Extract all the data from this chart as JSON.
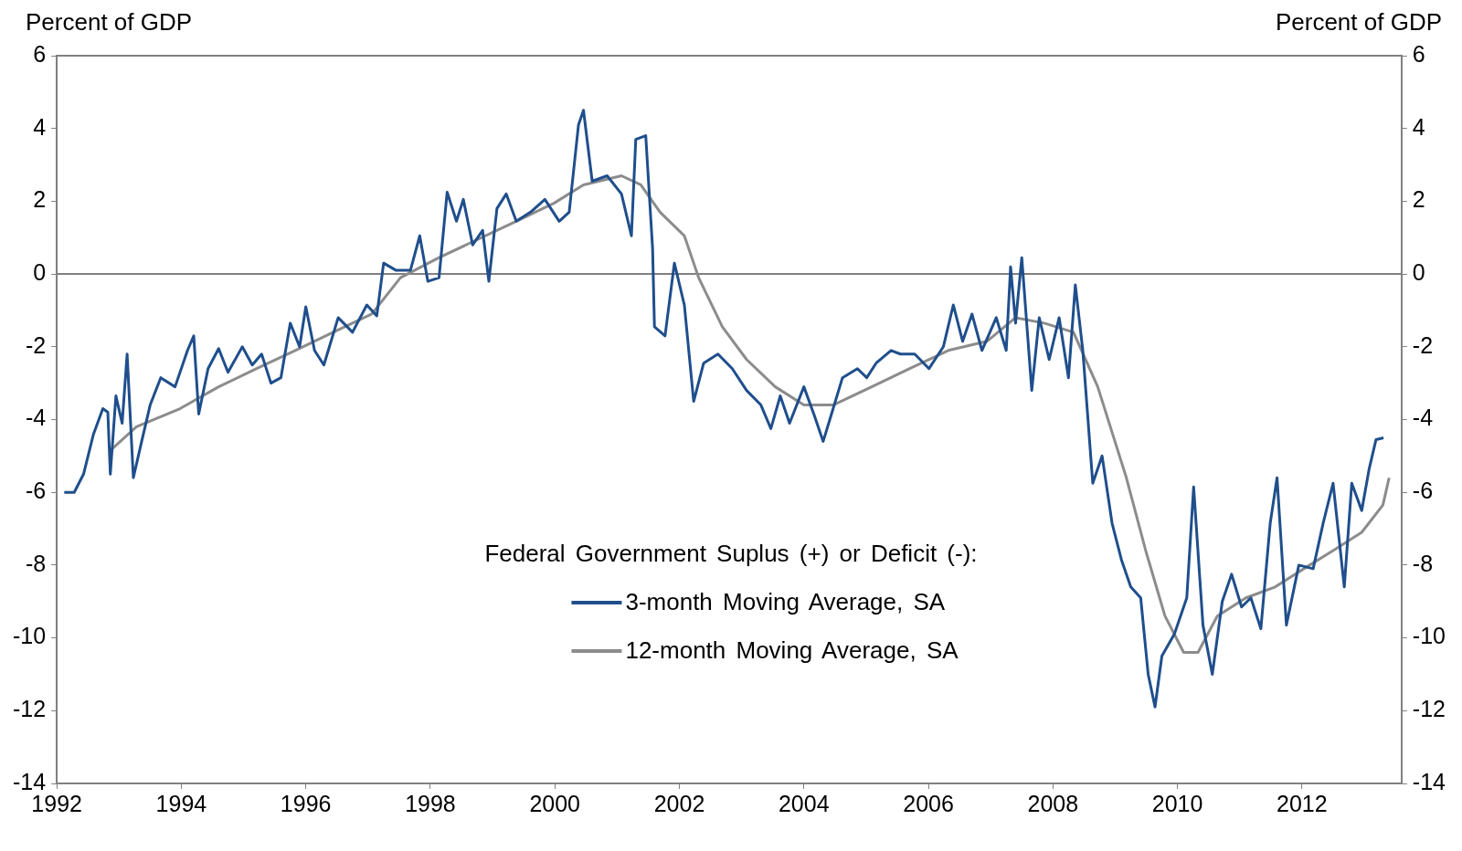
{
  "chart_data": {
    "type": "line",
    "ylabel": "Percent of GDP",
    "y2label": "Percent of GDP",
    "legend_title": "Federal Government Suplus (+) or Deficit (-):",
    "legend": "bottom",
    "grid": false,
    "marker": "none",
    "line_style": "solid",
    "xlim": [
      1992,
      2013.6
    ],
    "xticks": [
      1992,
      1994,
      1996,
      1998,
      2000,
      2002,
      2004,
      2006,
      2008,
      2010,
      2012
    ],
    "ylim": [
      -14,
      6
    ],
    "yticks": [
      -14,
      -12,
      -10,
      -8,
      -6,
      -4,
      -2,
      0,
      2,
      4,
      6
    ],
    "y2lim": [
      -14,
      6
    ],
    "y2ticks": [
      -14,
      -12,
      -10,
      -8,
      -6,
      -4,
      -2,
      0,
      2,
      4,
      6
    ],
    "ref_lines": [
      {
        "axis": "y",
        "value": 0,
        "color": "#808080"
      }
    ],
    "series": [
      {
        "name": "3-month Moving Average, SA",
        "color": "#1f4e8c",
        "x": [
          1992.12,
          1992.28,
          1992.43,
          1992.59,
          1992.74,
          1992.82,
          1992.86,
          1992.95,
          1993.05,
          1993.13,
          1993.23,
          1993.35,
          1993.5,
          1993.67,
          1993.9,
          1994.1,
          1994.2,
          1994.28,
          1994.43,
          1994.6,
          1994.75,
          1994.98,
          1995.14,
          1995.29,
          1995.44,
          1995.6,
          1995.75,
          1995.9,
          1996.0,
          1996.14,
          1996.29,
          1996.52,
          1996.75,
          1996.98,
          1997.14,
          1997.25,
          1997.45,
          1997.68,
          1997.83,
          1997.96,
          1998.14,
          1998.27,
          1998.42,
          1998.53,
          1998.68,
          1998.84,
          1998.94,
          1999.07,
          1999.22,
          1999.38,
          1999.61,
          1999.84,
          2000.07,
          2000.23,
          2000.38,
          2000.46,
          2000.6,
          2000.84,
          2001.07,
          2001.23,
          2001.3,
          2001.46,
          2001.57,
          2001.6,
          2001.77,
          2001.92,
          2002.08,
          2002.23,
          2002.39,
          2002.62,
          2002.85,
          2003.08,
          2003.31,
          2003.47,
          2003.62,
          2003.77,
          2004.0,
          2004.16,
          2004.31,
          2004.47,
          2004.62,
          2004.86,
          2005.01,
          2005.16,
          2005.4,
          2005.55,
          2005.78,
          2006.01,
          2006.24,
          2006.4,
          2006.55,
          2006.7,
          2006.86,
          2007.09,
          2007.25,
          2007.32,
          2007.4,
          2007.5,
          2007.66,
          2007.78,
          2007.94,
          2008.1,
          2008.25,
          2008.36,
          2008.48,
          2008.64,
          2008.79,
          2008.95,
          2009.1,
          2009.25,
          2009.41,
          2009.53,
          2009.64,
          2009.75,
          2009.95,
          2010.15,
          2010.26,
          2010.41,
          2010.56,
          2010.72,
          2010.87,
          2011.03,
          2011.18,
          2011.34,
          2011.49,
          2011.6,
          2011.75,
          2011.95,
          2012.18,
          2012.34,
          2012.5,
          2012.68,
          2012.8,
          2012.96,
          2013.08,
          2013.19,
          2013.31
        ],
        "values": [
          -6.0,
          -6.0,
          -5.5,
          -4.4,
          -3.7,
          -3.8,
          -5.5,
          -3.35,
          -4.1,
          -2.2,
          -5.6,
          -4.7,
          -3.6,
          -2.85,
          -3.1,
          -2.1,
          -1.7,
          -3.85,
          -2.6,
          -2.05,
          -2.7,
          -2.0,
          -2.5,
          -2.2,
          -3.0,
          -2.85,
          -1.35,
          -2.0,
          -0.9,
          -2.1,
          -2.5,
          -1.2,
          -1.6,
          -0.85,
          -1.15,
          0.3,
          0.1,
          0.1,
          1.05,
          -0.2,
          -0.1,
          2.25,
          1.45,
          2.05,
          0.8,
          1.2,
          -0.2,
          1.8,
          2.2,
          1.45,
          1.7,
          2.05,
          1.45,
          1.7,
          4.1,
          4.5,
          2.55,
          2.7,
          2.2,
          1.05,
          3.7,
          3.8,
          0.7,
          -1.45,
          -1.7,
          0.3,
          -0.85,
          -3.5,
          -2.45,
          -2.2,
          -2.6,
          -3.2,
          -3.6,
          -4.25,
          -3.35,
          -4.1,
          -3.1,
          -3.85,
          -4.6,
          -3.7,
          -2.85,
          -2.6,
          -2.85,
          -2.45,
          -2.1,
          -2.2,
          -2.2,
          -2.6,
          -2.0,
          -0.85,
          -1.85,
          -1.1,
          -2.1,
          -1.2,
          -2.1,
          0.2,
          -1.35,
          0.45,
          -3.2,
          -1.2,
          -2.35,
          -1.2,
          -2.85,
          -0.3,
          -2.1,
          -5.75,
          -5.0,
          -6.85,
          -7.85,
          -8.6,
          -8.9,
          -11.0,
          -11.9,
          -10.5,
          -9.9,
          -8.9,
          -5.85,
          -9.65,
          -11.0,
          -9.0,
          -8.25,
          -9.15,
          -8.9,
          -9.75,
          -6.85,
          -5.6,
          -9.65,
          -8.0,
          -8.1,
          -6.85,
          -5.75,
          -8.6,
          -5.75,
          -6.5,
          -5.35,
          -4.55,
          -4.5
        ]
      },
      {
        "name": "12-month Moving Average, SA",
        "color": "#8c8c8c",
        "x": [
          1992.86,
          1993.28,
          1993.98,
          1994.6,
          1995.21,
          1995.83,
          1996.44,
          1997.06,
          1997.52,
          1998.14,
          1998.76,
          1999.38,
          1999.99,
          2000.46,
          2001.07,
          2001.38,
          2001.69,
          2002.08,
          2002.31,
          2002.69,
          2003.08,
          2003.54,
          2004.0,
          2004.47,
          2005.09,
          2005.7,
          2006.32,
          2006.94,
          2007.4,
          2007.86,
          2008.33,
          2008.72,
          2009.18,
          2009.49,
          2009.8,
          2010.1,
          2010.33,
          2010.64,
          2011.1,
          2011.57,
          2012.03,
          2012.5,
          2012.96,
          2013.3,
          2013.4
        ],
        "values": [
          -4.85,
          -4.2,
          -3.7,
          -3.1,
          -2.6,
          -2.1,
          -1.6,
          -1.1,
          -0.1,
          0.45,
          0.95,
          1.45,
          1.95,
          2.45,
          2.7,
          2.45,
          1.7,
          1.05,
          -0.1,
          -1.45,
          -2.35,
          -3.1,
          -3.6,
          -3.6,
          -3.1,
          -2.6,
          -2.1,
          -1.85,
          -1.2,
          -1.35,
          -1.6,
          -3.1,
          -5.6,
          -7.6,
          -9.4,
          -10.4,
          -10.4,
          -9.4,
          -8.9,
          -8.6,
          -8.1,
          -7.6,
          -7.1,
          -6.35,
          -5.6
        ]
      }
    ]
  }
}
